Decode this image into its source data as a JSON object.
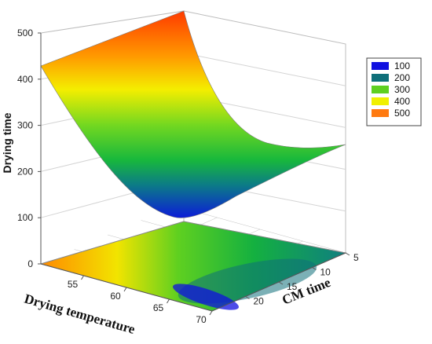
{
  "chart_data": {
    "type": "surface3d",
    "title": "",
    "zlabel": "Drying time",
    "xlabel": "Drying temperature",
    "ylabel": "CM time",
    "x_ticks": [
      55,
      60,
      65,
      70
    ],
    "y_ticks": [
      5,
      10,
      15,
      20
    ],
    "z_ticks": [
      0,
      100,
      200,
      300,
      400,
      500
    ],
    "xlim": [
      50,
      70
    ],
    "ylim": [
      5,
      25
    ],
    "zlim": [
      0,
      500
    ],
    "surface_corner_values": [
      {
        "temperature": 50,
        "cm_time": 25,
        "drying_time": 500
      },
      {
        "temperature": 50,
        "cm_time": 5,
        "drying_time": 430
      },
      {
        "temperature": 70,
        "cm_time": 5,
        "drying_time": 255
      },
      {
        "temperature": 70,
        "cm_time": 25,
        "drying_time": 110
      }
    ],
    "legend": {
      "position": "right",
      "entries": [
        {
          "label": "100",
          "color": "#1010e0"
        },
        {
          "label": "200",
          "color": "#0f6f7a"
        },
        {
          "label": "300",
          "color": "#5fd020"
        },
        {
          "label": "400",
          "color": "#f0f000"
        },
        {
          "label": "500",
          "color": "#ff7a10"
        }
      ]
    },
    "grid": true,
    "contour_projection": true
  }
}
